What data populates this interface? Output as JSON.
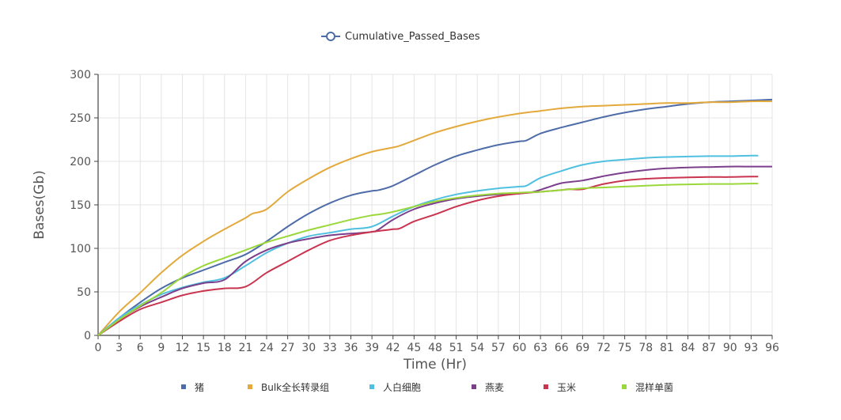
{
  "chart_data": {
    "type": "line",
    "title": "Cumulative_Passed_Bases",
    "xlabel": "Time (Hr)",
    "ylabel": "Bases(Gb)",
    "xlim": [
      0,
      96
    ],
    "ylim": [
      0,
      300
    ],
    "x_ticks": [
      0,
      3,
      6,
      9,
      12,
      15,
      18,
      21,
      24,
      27,
      30,
      33,
      36,
      39,
      42,
      45,
      48,
      51,
      54,
      57,
      60,
      63,
      66,
      69,
      72,
      75,
      78,
      81,
      84,
      87,
      90,
      93,
      96
    ],
    "y_ticks": [
      0,
      50,
      100,
      150,
      200,
      250,
      300
    ],
    "grid": true,
    "legend_position": "bottom",
    "series": [
      {
        "name": "猪",
        "color": "#4e6ca8",
        "x": [
          0,
          3,
          6,
          9,
          12,
          15,
          18,
          21,
          24,
          27,
          30,
          33,
          36,
          39,
          40,
          42,
          45,
          48,
          51,
          54,
          57,
          60,
          61,
          63,
          66,
          67,
          69,
          72,
          75,
          78,
          81,
          84,
          87,
          90,
          93,
          96
        ],
        "y": [
          0,
          20,
          38,
          54,
          66,
          75,
          84,
          93,
          108,
          125,
          140,
          152,
          161,
          166,
          167,
          172,
          184,
          196,
          206,
          213,
          219,
          223,
          224,
          232,
          239,
          241,
          245,
          251,
          256,
          260,
          263,
          266,
          268,
          269,
          270,
          271
        ]
      },
      {
        "name": "Bulk全长转录组",
        "color": "#e3a93b",
        "x": [
          0,
          3,
          6,
          9,
          12,
          15,
          18,
          21,
          22,
          24,
          27,
          30,
          33,
          36,
          39,
          42,
          43,
          45,
          48,
          51,
          54,
          57,
          60,
          63,
          66,
          69,
          72,
          75,
          78,
          81,
          84,
          87,
          90,
          93,
          96
        ],
        "y": [
          0,
          27,
          49,
          72,
          92,
          108,
          122,
          135,
          140,
          145,
          165,
          180,
          193,
          203,
          211,
          216,
          218,
          224,
          233,
          240,
          246,
          251,
          255,
          258,
          261,
          263,
          264,
          265,
          266,
          267,
          267,
          268,
          268,
          269,
          269
        ]
      },
      {
        "name": "人白细胞",
        "color": "#4fc0e0",
        "x": [
          0,
          3,
          6,
          9,
          12,
          15,
          18,
          21,
          24,
          27,
          30,
          33,
          36,
          39,
          42,
          45,
          48,
          51,
          54,
          57,
          60,
          61,
          63,
          66,
          69,
          72,
          75,
          78,
          81,
          84,
          87,
          90,
          93,
          94
        ],
        "y": [
          0,
          20,
          35,
          47,
          55,
          61,
          66,
          80,
          95,
          106,
          114,
          118,
          122,
          125,
          137,
          148,
          156,
          162,
          166,
          169,
          171,
          172,
          181,
          189,
          196,
          200,
          202,
          204,
          205,
          205.5,
          206,
          206,
          206.5,
          206.5
        ]
      },
      {
        "name": "燕麦",
        "color": "#7b3f8c",
        "x": [
          0,
          3,
          6,
          9,
          12,
          15,
          18,
          21,
          24,
          27,
          30,
          33,
          36,
          39,
          40,
          42,
          45,
          48,
          51,
          54,
          57,
          60,
          62,
          64,
          66,
          69,
          72,
          75,
          78,
          81,
          84,
          87,
          90,
          93,
          96
        ],
        "y": [
          0,
          18,
          33,
          44,
          54,
          60,
          64,
          85,
          98,
          106,
          111,
          115,
          117,
          119,
          122,
          133,
          145,
          152,
          157,
          160,
          162,
          163,
          165,
          170,
          175,
          178,
          183,
          187,
          190,
          192,
          193,
          193.5,
          194,
          194,
          194
        ]
      },
      {
        "name": "玉米",
        "color": "#c9344f",
        "x": [
          0,
          3,
          6,
          9,
          12,
          15,
          18,
          21,
          24,
          27,
          30,
          33,
          36,
          39,
          42,
          43,
          45,
          48,
          51,
          54,
          57,
          60,
          63,
          66,
          67,
          69,
          72,
          75,
          78,
          81,
          84,
          87,
          90,
          93,
          94
        ],
        "y": [
          0,
          16,
          30,
          38,
          46,
          51,
          54,
          56,
          72,
          85,
          98,
          109,
          115,
          119,
          122,
          123,
          131,
          139,
          148,
          155,
          160,
          163,
          165,
          167,
          168,
          168,
          174,
          178,
          180,
          181,
          181.5,
          182,
          182,
          182.5,
          182.5
        ]
      },
      {
        "name": "混样单菌",
        "color": "#9ad83a",
        "x": [
          0,
          3,
          6,
          9,
          12,
          15,
          18,
          21,
          24,
          27,
          30,
          33,
          36,
          39,
          40,
          42,
          45,
          48,
          51,
          54,
          57,
          60,
          63,
          66,
          69,
          72,
          75,
          78,
          81,
          84,
          87,
          90,
          93,
          94
        ],
        "y": [
          0,
          18,
          34,
          49,
          67,
          80,
          89,
          98,
          107,
          114,
          121,
          127,
          133,
          138,
          139,
          142,
          148,
          154,
          158,
          161,
          163,
          164,
          165,
          167,
          169,
          170,
          171,
          172,
          173,
          173.5,
          174,
          174,
          174.5,
          174.5
        ]
      }
    ]
  }
}
